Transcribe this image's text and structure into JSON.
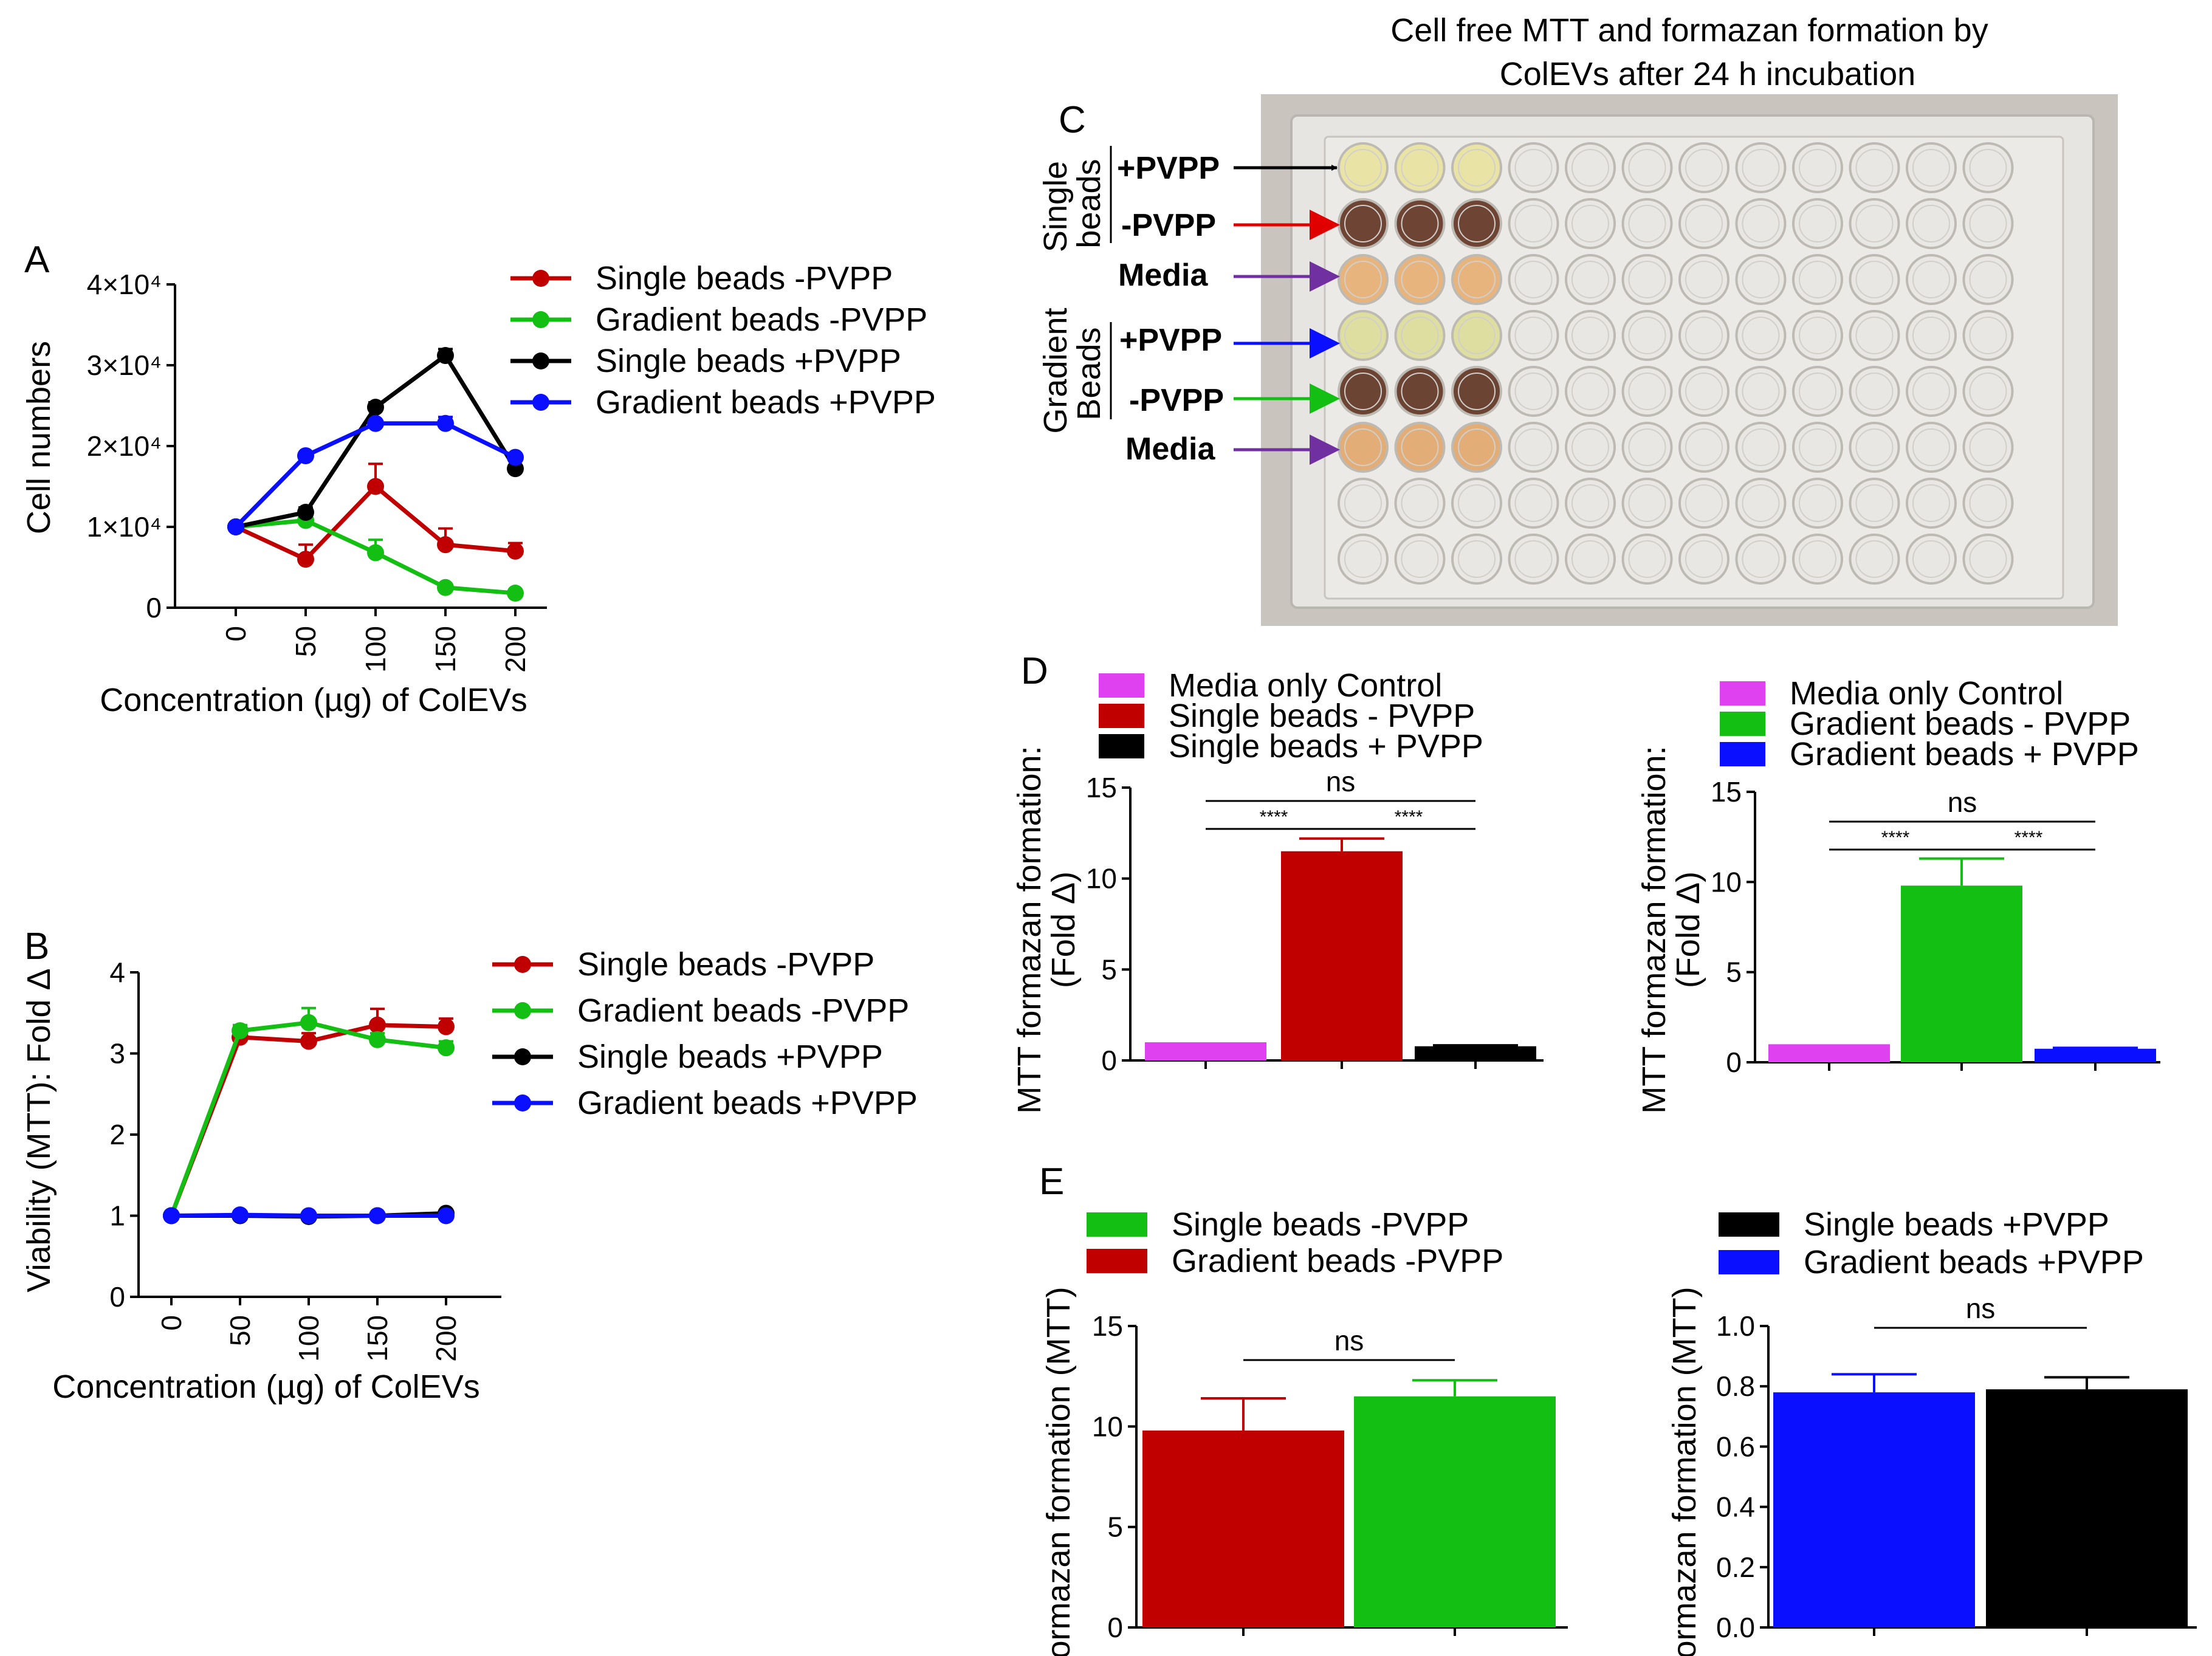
{
  "figure_title": {
    "line1": "Cell free MTT and formazan formation by",
    "line2": "ColEVs after 24 h incubation"
  },
  "panel_labels": {
    "a": "A",
    "b": "B",
    "c": "C",
    "d": "D",
    "e": "E"
  },
  "colors": {
    "red": "#c00000",
    "green": "#12bf12",
    "black": "#000000",
    "blue": "#0a10ff",
    "magenta": "#e041f0",
    "purple": "#7030a0"
  },
  "chart_data": [
    {
      "id": "A",
      "type": "line",
      "xlabel": "Concentration (µg) of ColEVs",
      "ylabel": "Cell numbers",
      "categories": [
        "0",
        "50",
        "100",
        "150",
        "200"
      ],
      "yticks": [
        "0",
        "1×10⁴",
        "2×10⁴",
        "3×10⁴",
        "4×10⁴"
      ],
      "ylim": [
        0,
        40000
      ],
      "series": [
        {
          "name": "Single beads -PVPP",
          "color": "#c00000",
          "values": [
            10000,
            6000,
            15000,
            7800,
            7000
          ],
          "errors": [
            0,
            1800,
            2800,
            2000,
            1000
          ]
        },
        {
          "name": "Gradient beads -PVPP",
          "color": "#12bf12",
          "values": [
            10000,
            10800,
            6800,
            2500,
            1800
          ],
          "errors": [
            0,
            900,
            1600,
            400,
            300
          ]
        },
        {
          "name": "Single beads +PVPP",
          "color": "#000000",
          "values": [
            10000,
            11800,
            24800,
            31200,
            17200
          ],
          "errors": [
            0,
            600,
            600,
            800,
            400
          ]
        },
        {
          "name": "Gradient beads +PVPP",
          "color": "#0a10ff",
          "values": [
            10000,
            18800,
            22800,
            22800,
            18600
          ],
          "errors": [
            0,
            400,
            400,
            800,
            400
          ]
        }
      ]
    },
    {
      "id": "B",
      "type": "line",
      "xlabel": "Concentration (µg) of ColEVs",
      "ylabel": "Viability (MTT): Fold Δ",
      "categories": [
        "0",
        "50",
        "100",
        "150",
        "200"
      ],
      "yticks": [
        "0",
        "1",
        "2",
        "3",
        "4"
      ],
      "ylim": [
        0,
        4
      ],
      "series": [
        {
          "name": "Single beads -PVPP",
          "color": "#c00000",
          "values": [
            1.0,
            3.2,
            3.15,
            3.35,
            3.33
          ],
          "errors": [
            0,
            0.08,
            0.1,
            0.2,
            0.1
          ]
        },
        {
          "name": "Gradient beads -PVPP",
          "color": "#12bf12",
          "values": [
            1.0,
            3.28,
            3.38,
            3.17,
            3.07
          ],
          "errors": [
            0,
            0.07,
            0.18,
            0.08,
            0.08
          ]
        },
        {
          "name": "Single beads +PVPP",
          "color": "#000000",
          "values": [
            1.0,
            1.0,
            0.99,
            1.0,
            1.03
          ],
          "errors": [
            0,
            0.02,
            0.02,
            0.02,
            0.02
          ]
        },
        {
          "name": "Gradient beads +PVPP",
          "color": "#0a10ff",
          "values": [
            1.0,
            1.01,
            1.0,
            1.0,
            1.0
          ],
          "errors": [
            0,
            0.02,
            0.02,
            0.02,
            0.02
          ]
        }
      ]
    },
    {
      "id": "D1",
      "type": "bar",
      "ylabel_line1": "MTT formazan formation:",
      "ylabel_line2": "(Fold Δ)",
      "yticks": [
        "0",
        "5",
        "10",
        "15"
      ],
      "ylim": [
        0,
        15
      ],
      "bars": [
        {
          "name": "Media only Control",
          "color": "#e041f0",
          "value": 1.0,
          "error": 0
        },
        {
          "name": "Single beads - PVPP",
          "color": "#c00000",
          "value": 11.5,
          "error": 0.7
        },
        {
          "name": "Single beads + PVPP",
          "color": "#000000",
          "value": 0.78,
          "error": 0.05
        }
      ],
      "annotations": [
        "ns",
        "****",
        "****"
      ]
    },
    {
      "id": "D2",
      "type": "bar",
      "ylabel_line1": "MTT formazan formation:",
      "ylabel_line2": "(Fold Δ)",
      "yticks": [
        "0",
        "5",
        "10",
        "15"
      ],
      "ylim": [
        0,
        15
      ],
      "bars": [
        {
          "name": "Media only Control",
          "color": "#e041f0",
          "value": 1.0,
          "error": 0
        },
        {
          "name": "Gradient beads - PVPP",
          "color": "#12bf12",
          "value": 9.8,
          "error": 1.5
        },
        {
          "name": "Gradient beads + PVPP",
          "color": "#0a10ff",
          "value": 0.75,
          "error": 0.05
        }
      ],
      "annotations": [
        "ns",
        "****",
        "****"
      ]
    },
    {
      "id": "E1",
      "type": "bar",
      "ylabel": "Formazan formation (MTT)",
      "yticks": [
        "0",
        "5",
        "10",
        "15"
      ],
      "ylim": [
        0,
        15
      ],
      "legend": [
        {
          "name": "Single beads -PVPP",
          "color": "#12bf12"
        },
        {
          "name": "Gradient beads -PVPP",
          "color": "#c00000"
        }
      ],
      "bars": [
        {
          "color": "#c00000",
          "value": 9.8,
          "error": 1.6
        },
        {
          "color": "#12bf12",
          "value": 11.5,
          "error": 0.8
        }
      ],
      "annotations": [
        "ns"
      ]
    },
    {
      "id": "E2",
      "type": "bar",
      "ylabel": "Formazan formation (MTT)",
      "yticks": [
        "0.0",
        "0.2",
        "0.4",
        "0.6",
        "0.8",
        "1.0"
      ],
      "ylim": [
        0,
        1.0
      ],
      "legend": [
        {
          "name": "Single beads +PVPP",
          "color": "#000000"
        },
        {
          "name": "Gradient beads +PVPP",
          "color": "#0a10ff"
        }
      ],
      "bars": [
        {
          "color": "#0a10ff",
          "value": 0.78,
          "error": 0.06
        },
        {
          "color": "#000000",
          "value": 0.79,
          "error": 0.04
        }
      ],
      "annotations": [
        "ns"
      ]
    }
  ],
  "plate": {
    "group_single": "Single\nbeads",
    "group_gradient": "Gradient\nBeads",
    "rows": [
      {
        "label": "+PVPP",
        "color": "#000000",
        "well": "#e9e4a6"
      },
      {
        "label": "-PVPP",
        "color": "#e00000",
        "well": "#6e4434"
      },
      {
        "label": "Media",
        "color": "#7030a0",
        "well": "#e8b47e"
      },
      {
        "label": "+PVPP",
        "color": "#0a10ff",
        "well": "#dedea0"
      },
      {
        "label": "-PVPP",
        "color": "#12bf12",
        "well": "#6b4434"
      },
      {
        "label": "Media",
        "color": "#7030a0",
        "well": "#e3ad77"
      }
    ]
  }
}
